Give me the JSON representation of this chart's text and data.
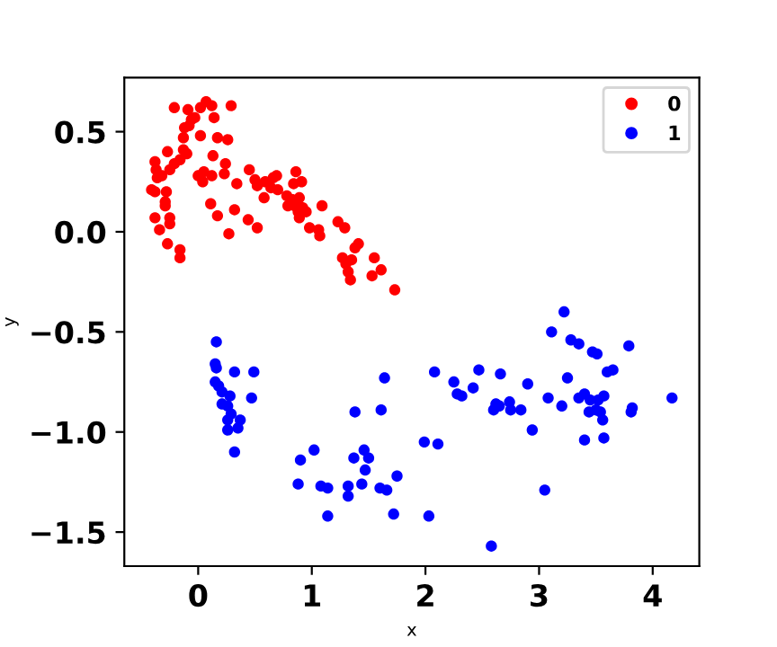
{
  "chart_data": {
    "type": "scatter",
    "xlabel": "x",
    "ylabel": "y",
    "xlim": [
      -0.65,
      4.41
    ],
    "ylim": [
      -1.67,
      0.77
    ],
    "xticks": [
      0,
      1,
      2,
      3,
      4
    ],
    "yticks": [
      {
        "value": -1.5,
        "label": "−1.5"
      },
      {
        "value": -1.0,
        "label": "−1.0"
      },
      {
        "value": -0.5,
        "label": "−0.5"
      },
      {
        "value": 0.0,
        "label": "0.0"
      },
      {
        "value": 0.5,
        "label": "0.5"
      }
    ],
    "grid": false,
    "legend": "top right",
    "marker": "circle",
    "series": [
      {
        "name": "0",
        "color": "#ff0000",
        "x": [
          -0.21,
          -0.09,
          0.02,
          0.07,
          0.12,
          0.29,
          -0.03,
          -0.06,
          0.14,
          -0.12,
          -0.08,
          -0.13,
          0.02,
          0.17,
          0.26,
          -0.27,
          -0.13,
          -0.1,
          0.13,
          -0.38,
          -0.16,
          -0.21,
          0.24,
          -0.37,
          -0.25,
          0.45,
          -0.36,
          -0.32,
          0.0,
          0.05,
          0.12,
          0.23,
          0.86,
          0.04,
          0.34,
          0.5,
          0.52,
          0.59,
          0.66,
          0.69,
          0.84,
          0.91,
          -0.41,
          -0.38,
          -0.28,
          0.64,
          0.7,
          0.58,
          0.78,
          0.83,
          0.89,
          0.11,
          -0.29,
          -0.29,
          0.79,
          0.85,
          0.92,
          1.09,
          0.32,
          0.88,
          0.95,
          0.17,
          -0.38,
          -0.25,
          0.89,
          -0.25,
          0.98,
          1.06,
          0.44,
          1.23,
          -0.34,
          0.27,
          0.52,
          1.07,
          1.29,
          -0.27,
          -0.16,
          -0.16,
          1.41,
          1.38,
          1.27,
          1.55,
          1.3,
          1.35,
          1.32,
          1.34,
          1.53,
          1.61,
          1.73
        ],
        "values": [
          0.62,
          0.61,
          0.62,
          0.65,
          0.63,
          0.63,
          0.57,
          0.56,
          0.57,
          0.52,
          0.53,
          0.47,
          0.48,
          0.47,
          0.46,
          0.4,
          0.41,
          0.39,
          0.38,
          0.35,
          0.36,
          0.34,
          0.34,
          0.31,
          0.31,
          0.31,
          0.27,
          0.28,
          0.28,
          0.3,
          0.28,
          0.29,
          0.3,
          0.25,
          0.24,
          0.26,
          0.23,
          0.25,
          0.27,
          0.28,
          0.24,
          0.25,
          0.21,
          0.2,
          0.2,
          0.22,
          0.21,
          0.17,
          0.18,
          0.16,
          0.17,
          0.14,
          0.15,
          0.13,
          0.13,
          0.13,
          0.12,
          0.13,
          0.11,
          0.1,
          0.1,
          0.08,
          0.07,
          0.07,
          0.07,
          0.04,
          0.02,
          0.01,
          0.06,
          0.05,
          0.01,
          -0.01,
          0.02,
          -0.02,
          0.02,
          -0.06,
          -0.09,
          -0.13,
          -0.06,
          -0.08,
          -0.13,
          -0.13,
          -0.16,
          -0.14,
          -0.2,
          -0.24,
          -0.22,
          -0.19,
          -0.29
        ]
      },
      {
        "name": "1",
        "color": "#0000ff",
        "x": [
          0.16,
          0.15,
          0.16,
          0.32,
          0.49,
          0.15,
          0.18,
          0.21,
          0.28,
          0.47,
          0.21,
          0.26,
          0.29,
          0.37,
          0.26,
          0.35,
          0.26,
          0.32,
          1.64,
          1.38,
          1.61,
          1.02,
          0.9,
          1.37,
          1.46,
          1.5,
          1.47,
          1.75,
          0.88,
          1.08,
          1.14,
          1.32,
          1.44,
          1.6,
          1.66,
          1.32,
          1.14,
          1.72,
          2.03,
          1.99,
          2.11,
          2.08,
          2.25,
          2.28,
          2.32,
          2.42,
          3.22,
          3.11,
          3.28,
          3.35,
          3.47,
          3.51,
          3.79,
          2.47,
          2.66,
          2.9,
          3.25,
          3.6,
          3.65,
          2.62,
          2.6,
          2.65,
          2.74,
          2.75,
          2.84,
          3.08,
          3.2,
          3.35,
          3.4,
          3.45,
          3.52,
          3.57,
          3.44,
          3.5,
          3.54,
          3.56,
          3.82,
          3.81,
          4.17,
          2.94,
          3.4,
          3.57,
          3.05,
          2.58
        ],
        "values": [
          -0.55,
          -0.66,
          -0.68,
          -0.7,
          -0.7,
          -0.75,
          -0.77,
          -0.8,
          -0.82,
          -0.83,
          -0.86,
          -0.87,
          -0.91,
          -0.94,
          -0.94,
          -0.98,
          -0.99,
          -1.1,
          -0.73,
          -0.9,
          -0.89,
          -1.09,
          -1.14,
          -1.13,
          -1.09,
          -1.13,
          -1.19,
          -1.22,
          -1.26,
          -1.27,
          -1.28,
          -1.27,
          -1.26,
          -1.28,
          -1.29,
          -1.32,
          -1.42,
          -1.41,
          -1.42,
          -1.05,
          -1.06,
          -0.7,
          -0.75,
          -0.81,
          -0.82,
          -0.78,
          -0.4,
          -0.5,
          -0.54,
          -0.56,
          -0.6,
          -0.61,
          -0.57,
          -0.69,
          -0.71,
          -0.76,
          -0.73,
          -0.7,
          -0.69,
          -0.86,
          -0.89,
          -0.87,
          -0.85,
          -0.89,
          -0.89,
          -0.83,
          -0.87,
          -0.83,
          -0.81,
          -0.84,
          -0.84,
          -0.82,
          -0.9,
          -0.89,
          -0.9,
          -0.94,
          -0.88,
          -0.9,
          -0.83,
          -0.99,
          -1.04,
          -1.03,
          -1.29,
          -1.57
        ]
      }
    ]
  }
}
